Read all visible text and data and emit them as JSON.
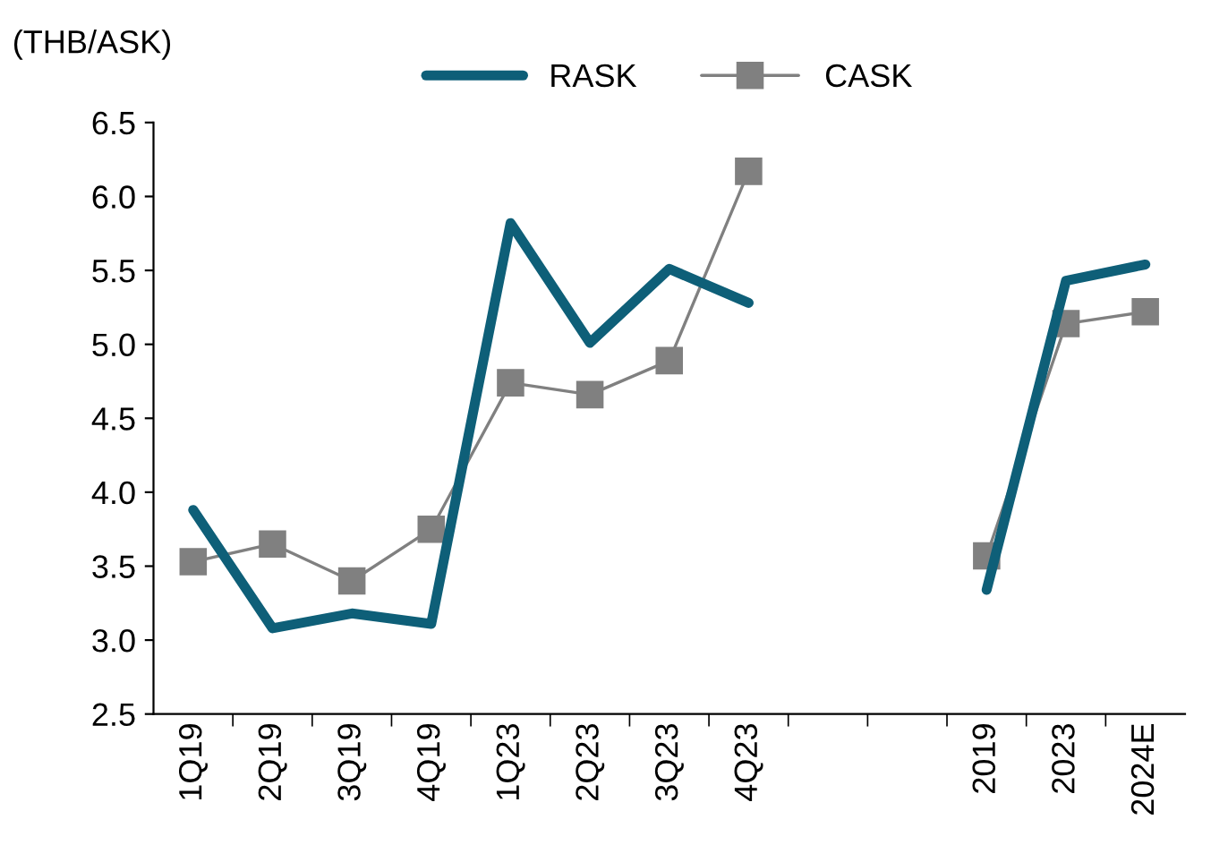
{
  "chart_data": {
    "type": "line",
    "ylabel": "(THB/ASK)",
    "categories": [
      "1Q19",
      "2Q19",
      "3Q19",
      "4Q19",
      "1Q23",
      "2Q23",
      "3Q23",
      "4Q23",
      null,
      null,
      "2019",
      "2023",
      "2024E"
    ],
    "series": [
      {
        "name": "RASK",
        "color": "#0e5f78",
        "marker": "none",
        "values": [
          3.88,
          3.08,
          3.18,
          3.11,
          5.82,
          5.01,
          5.51,
          5.28,
          null,
          null,
          3.34,
          5.43,
          5.54
        ]
      },
      {
        "name": "CASK",
        "color": "#808080",
        "marker": "square",
        "values": [
          3.53,
          3.65,
          3.4,
          3.75,
          4.74,
          4.66,
          4.89,
          6.17,
          null,
          null,
          3.57,
          5.14,
          5.22
        ]
      }
    ],
    "ylim": [
      2.5,
      6.5
    ],
    "yticks": [
      2.5,
      {
        "value": 3,
        "label": "3.0"
      },
      3.5,
      {
        "value": 4,
        "label": "4.0"
      },
      4.5,
      {
        "value": 5,
        "label": "5.0"
      },
      5.5,
      {
        "value": 6,
        "label": "6.0"
      },
      6.5
    ],
    "grid": false,
    "legend": "top"
  }
}
